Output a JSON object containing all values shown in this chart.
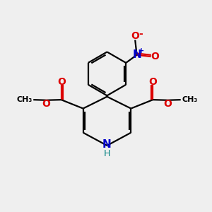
{
  "bg_color": "#efefef",
  "bond_color": "#000000",
  "bond_width": 1.6,
  "atom_colors": {
    "O": "#dd0000",
    "N": "#0000cc",
    "H": "#008080",
    "C": "#000000"
  },
  "font_size": 9,
  "fig_size": [
    3.0,
    3.0
  ],
  "dpi": 100
}
